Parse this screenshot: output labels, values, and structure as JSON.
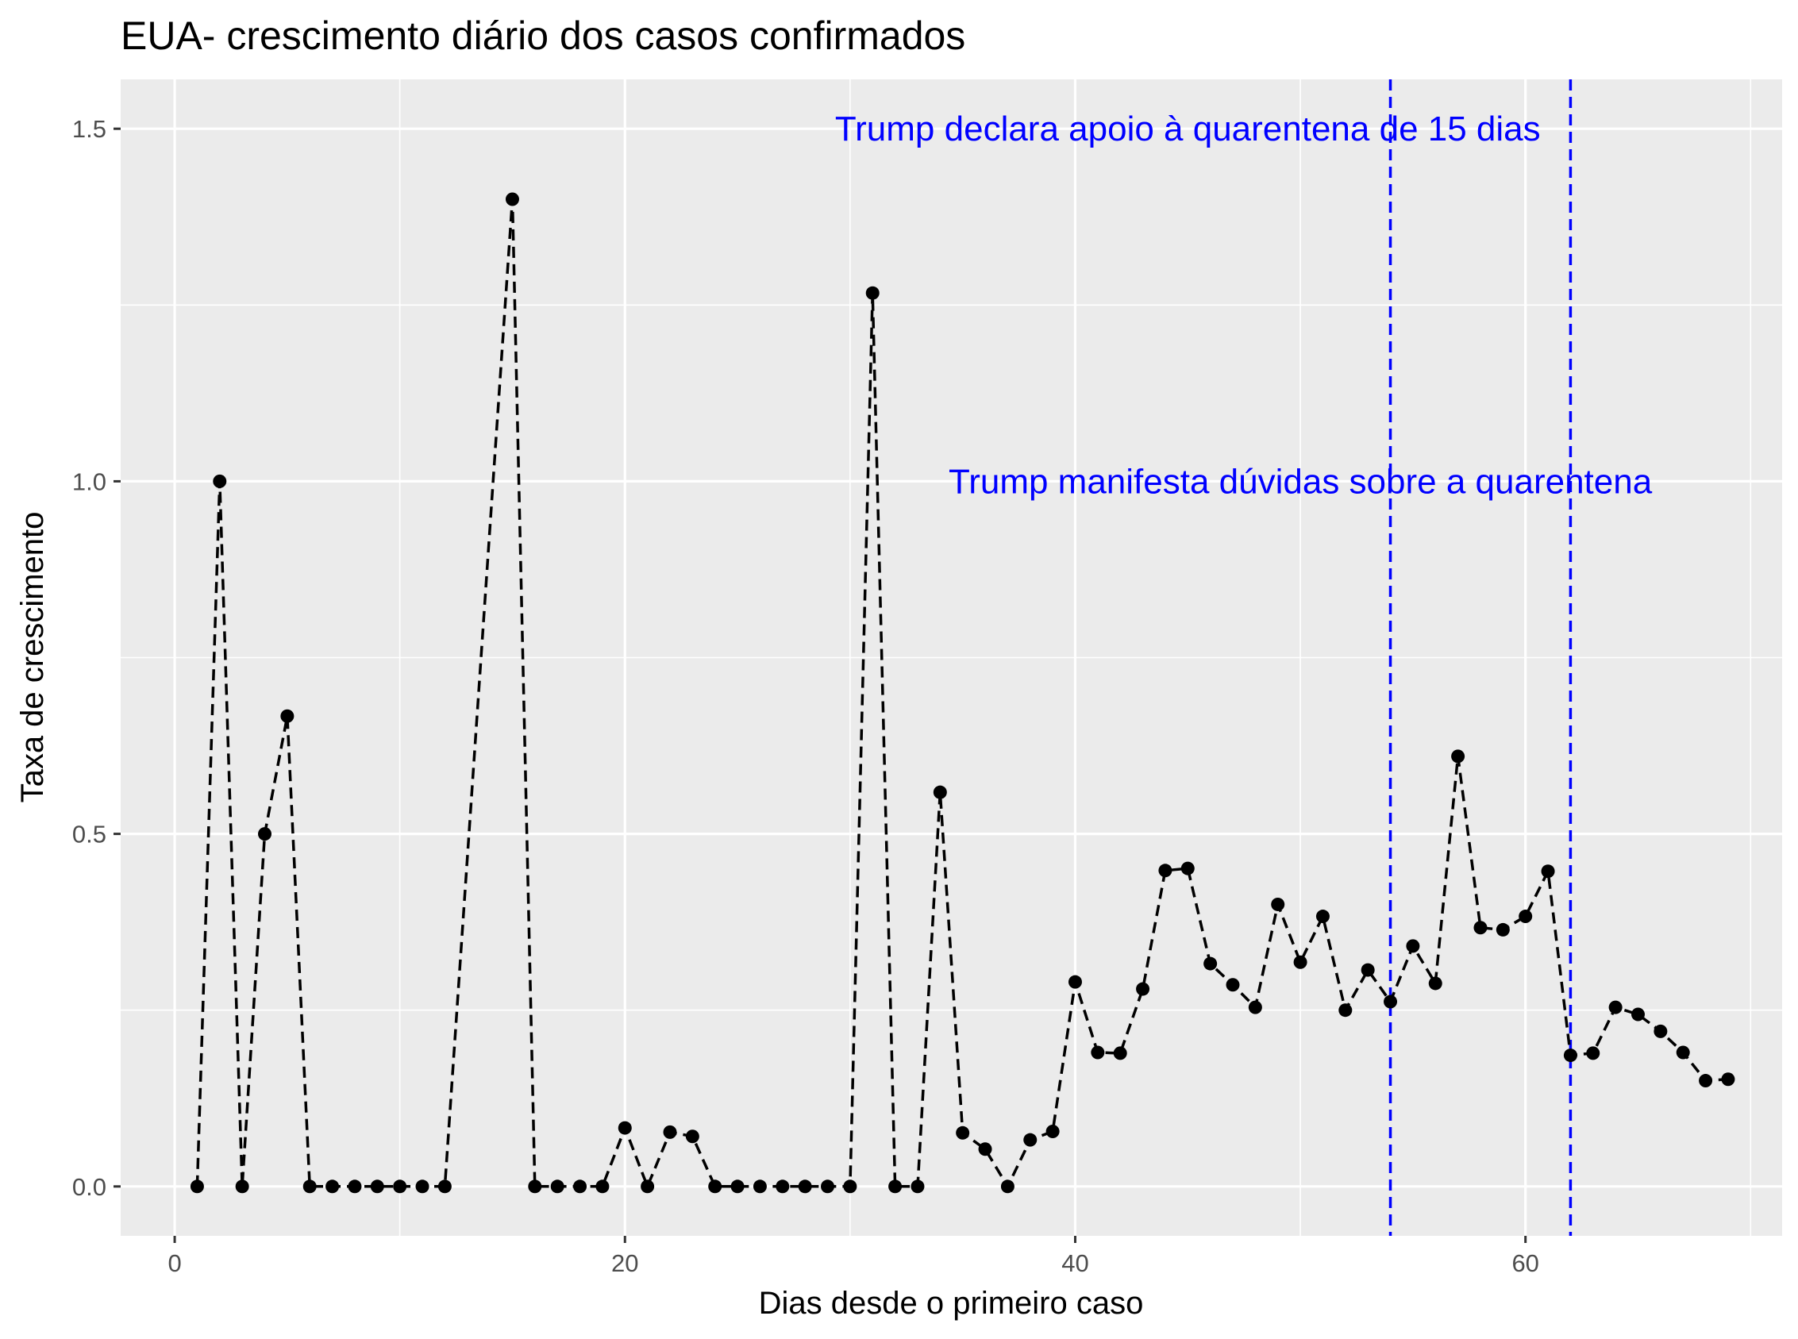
{
  "chart_data": {
    "type": "line",
    "title": "EUA- crescimento diário dos casos confirmados",
    "xlabel": "Dias desde o primeiro caso",
    "ylabel": "Taxa de crescimento",
    "xlim": [
      -2.4,
      71.4
    ],
    "ylim": [
      -0.07,
      1.57
    ],
    "x_ticks": [
      {
        "value": 0,
        "label": "0"
      },
      {
        "value": 20,
        "label": "20"
      },
      {
        "value": 40,
        "label": "40"
      },
      {
        "value": 60,
        "label": "60"
      }
    ],
    "y_ticks": [
      {
        "value": 0.0,
        "label": "0.0"
      },
      {
        "value": 0.5,
        "label": "0.5"
      },
      {
        "value": 1.0,
        "label": "1.0"
      },
      {
        "value": 1.5,
        "label": "1.5"
      }
    ],
    "grid": true,
    "background": "#ebebeb",
    "line_style": "dashed",
    "series": [
      {
        "color": "#000000",
        "x": [
          1,
          2,
          3,
          4,
          5,
          6,
          7,
          8,
          9,
          10,
          11,
          12,
          15,
          16,
          17,
          18,
          19,
          20,
          21,
          22,
          23,
          24,
          25,
          26,
          27,
          28,
          29,
          30,
          31,
          32,
          33,
          34,
          35,
          36,
          37,
          38,
          39,
          40,
          41,
          42,
          43,
          44,
          45,
          46,
          47,
          48,
          49,
          50,
          51,
          52,
          53,
          54,
          55,
          56,
          57,
          58,
          59,
          60,
          61,
          62,
          63,
          64,
          65,
          66,
          67,
          68,
          69
        ],
        "y": [
          0,
          1.0,
          0,
          0.5,
          0.667,
          0,
          0,
          0,
          0,
          0,
          0,
          0,
          1.4,
          0,
          0,
          0,
          0,
          0.083,
          0,
          0.077,
          0.071,
          0,
          0,
          0,
          0,
          0,
          0,
          0,
          1.267,
          0,
          0,
          0.559,
          0.076,
          0.053,
          0,
          0.066,
          0.078,
          0.29,
          0.19,
          0.189,
          0.28,
          0.448,
          0.451,
          0.316,
          0.286,
          0.254,
          0.4,
          0.318,
          0.383,
          0.25,
          0.307,
          0.262,
          0.341,
          0.288,
          0.61,
          0.367,
          0.364,
          0.383,
          0.447,
          0.186,
          0.189,
          0.254,
          0.244,
          0.22,
          0.19,
          0.15,
          0.152
        ]
      }
    ],
    "vertical_lines": [
      {
        "x": 54,
        "color": "#0000ff",
        "style": "dashed"
      },
      {
        "x": 62,
        "color": "#0000ff",
        "style": "dashed"
      }
    ],
    "annotations": [
      {
        "text": "Trump declara apoio à quarentena de 15 dias",
        "x": 45,
        "y": 1.5,
        "color": "#0000ff"
      },
      {
        "text": "Trump manifesta dúvidas sobre a quarentena",
        "x": 50,
        "y": 1.0,
        "color": "#0000ff"
      }
    ]
  }
}
